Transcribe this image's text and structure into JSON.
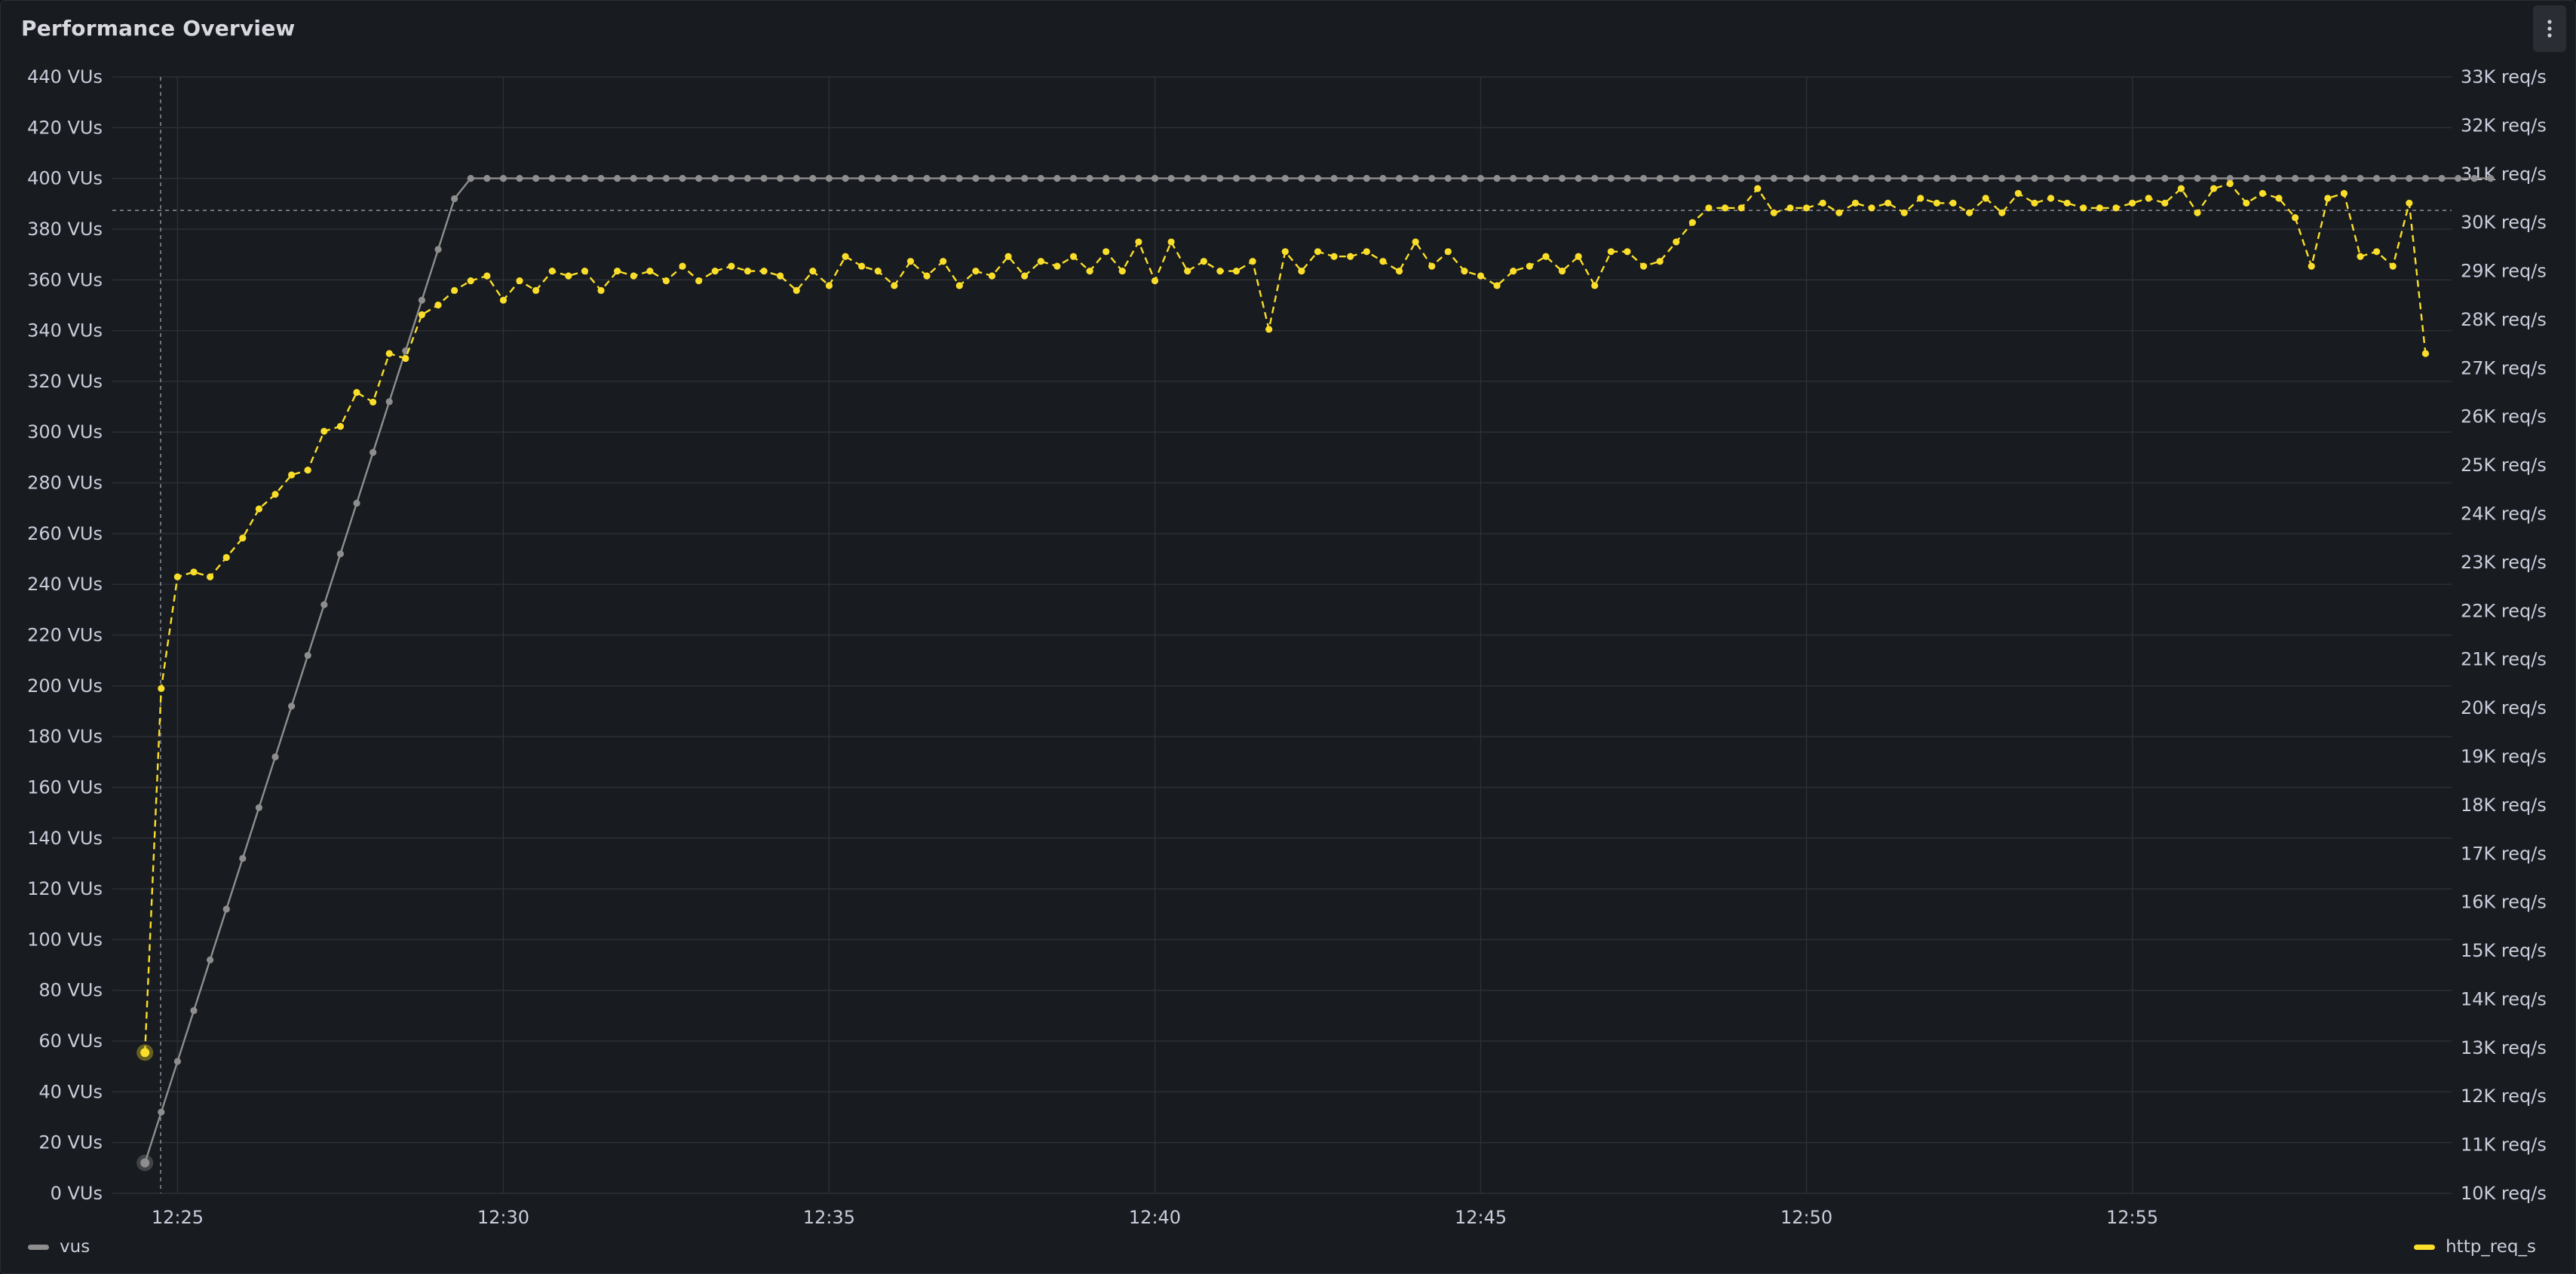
{
  "panel": {
    "title": "Performance Overview",
    "menu_icon": "kebab-menu-icon"
  },
  "colors": {
    "vus": "#8e8e8e",
    "http_req_s": "#fade2a",
    "background": "#181b1f",
    "grid": "#2c2f35"
  },
  "legend": {
    "items": [
      {
        "label": "vus",
        "color": "#8e8e8e"
      },
      {
        "label": "http_req_s",
        "color": "#fade2a"
      }
    ]
  },
  "chart_data": {
    "type": "line",
    "title": "Performance Overview",
    "grid": true,
    "legend_placement": "bottom",
    "x_ticks": [
      "12:25",
      "12:30",
      "12:35",
      "12:40",
      "12:45",
      "12:50",
      "12:55"
    ],
    "x_tick_minutes": [
      0.5,
      5.5,
      10.5,
      15.5,
      20.5,
      25.5,
      30.5
    ],
    "xlim_minutes": [
      -0.5,
      35.4
    ],
    "y_left": {
      "unit": "VUs",
      "ylim": [
        0,
        440
      ],
      "ticks": [
        "0 VUs",
        "20 VUs",
        "40 VUs",
        "60 VUs",
        "80 VUs",
        "100 VUs",
        "120 VUs",
        "140 VUs",
        "160 VUs",
        "180 VUs",
        "200 VUs",
        "220 VUs",
        "240 VUs",
        "260 VUs",
        "280 VUs",
        "300 VUs",
        "320 VUs",
        "340 VUs",
        "360 VUs",
        "380 VUs",
        "400 VUs",
        "420 VUs",
        "440 VUs"
      ]
    },
    "y_right": {
      "unit": "req/s",
      "ylim": [
        10000,
        33000
      ],
      "ticks": [
        "10K req/s",
        "11K req/s",
        "12K req/s",
        "13K req/s",
        "14K req/s",
        "15K req/s",
        "16K req/s",
        "17K req/s",
        "18K req/s",
        "19K req/s",
        "20K req/s",
        "21K req/s",
        "22K req/s",
        "23K req/s",
        "24K req/s",
        "25K req/s",
        "26K req/s",
        "27K req/s",
        "28K req/s",
        "29K req/s",
        "30K req/s",
        "31K req/s",
        "32K req/s",
        "33K req/s"
      ]
    },
    "threshold_right": 30250,
    "series": [
      {
        "name": "vus",
        "axis": "left",
        "style": "solid",
        "x_start_minutes": 0,
        "x_step_minutes": 0.25,
        "values": [
          12,
          32,
          52,
          72,
          92,
          112,
          132,
          152,
          172,
          192,
          212,
          232,
          252,
          272,
          292,
          312,
          332,
          352,
          372,
          392,
          400,
          400,
          400,
          400,
          400,
          400,
          400,
          400,
          400,
          400,
          400,
          400,
          400,
          400,
          400,
          400,
          400,
          400,
          400,
          400,
          400,
          400,
          400,
          400,
          400,
          400,
          400,
          400,
          400,
          400,
          400,
          400,
          400,
          400,
          400,
          400,
          400,
          400,
          400,
          400,
          400,
          400,
          400,
          400,
          400,
          400,
          400,
          400,
          400,
          400,
          400,
          400,
          400,
          400,
          400,
          400,
          400,
          400,
          400,
          400,
          400,
          400,
          400,
          400,
          400,
          400,
          400,
          400,
          400,
          400,
          400,
          400,
          400,
          400,
          400,
          400,
          400,
          400,
          400,
          400,
          400,
          400,
          400,
          400,
          400,
          400,
          400,
          400,
          400,
          400,
          400,
          400,
          400,
          400,
          400,
          400,
          400,
          400,
          400,
          400,
          400,
          400,
          400,
          400,
          400,
          400,
          400,
          400,
          400,
          400,
          400,
          400,
          400,
          400,
          400,
          400,
          400,
          400,
          400,
          400,
          400,
          400,
          400,
          400,
          400
        ]
      },
      {
        "name": "http_req_s",
        "axis": "right",
        "style": "dashed",
        "x_start_minutes": 0,
        "x_step_minutes": 0.25,
        "values": [
          12900,
          20400,
          22700,
          22800,
          22700,
          23100,
          23500,
          24100,
          24400,
          24800,
          24900,
          25700,
          25800,
          26500,
          26300,
          27300,
          27200,
          28100,
          28300,
          28600,
          28800,
          28900,
          28400,
          28800,
          28600,
          29000,
          28900,
          29000,
          28600,
          29000,
          28900,
          29000,
          28800,
          29100,
          28800,
          29000,
          29100,
          29000,
          29000,
          28900,
          28600,
          29000,
          28700,
          29300,
          29100,
          29000,
          28700,
          29200,
          28900,
          29200,
          28700,
          29000,
          28900,
          29300,
          28900,
          29200,
          29100,
          29300,
          29000,
          29400,
          29000,
          29600,
          28800,
          29600,
          29000,
          29200,
          29000,
          29000,
          29200,
          27800,
          29400,
          29000,
          29400,
          29300,
          29300,
          29400,
          29200,
          29000,
          29600,
          29100,
          29400,
          29000,
          28900,
          28700,
          29000,
          29100,
          29300,
          29000,
          29300,
          28700,
          29400,
          29400,
          29100,
          29200,
          29600,
          30000,
          30300,
          30300,
          30300,
          30700,
          30200,
          30300,
          30300,
          30400,
          30200,
          30400,
          30300,
          30400,
          30200,
          30500,
          30400,
          30400,
          30200,
          30500,
          30200,
          30600,
          30400,
          30500,
          30400,
          30300,
          30300,
          30300,
          30400,
          30500,
          30400,
          30700,
          30200,
          30700,
          30800,
          30400,
          30600,
          30500,
          30100,
          29100,
          30500,
          30600,
          29300,
          29400,
          29100,
          30400,
          27300
        ]
      }
    ]
  }
}
